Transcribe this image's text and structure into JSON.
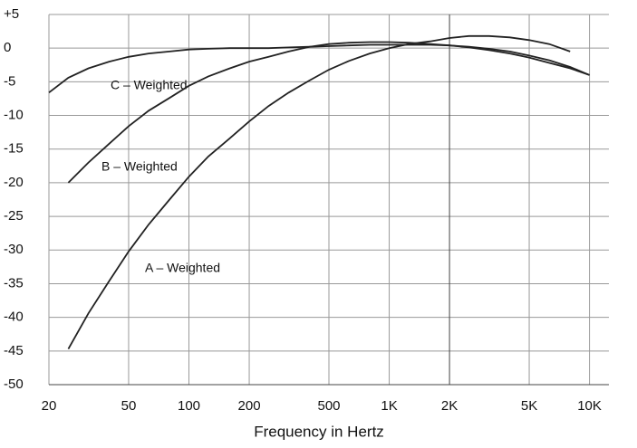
{
  "chart_data": {
    "type": "line",
    "x_label": "Frequency in Hertz",
    "log_x": true,
    "x": [
      20,
      25,
      31.5,
      40,
      50,
      63,
      80,
      100,
      125,
      160,
      200,
      250,
      315,
      400,
      500,
      630,
      800,
      1000,
      1250,
      1600,
      2000,
      2500,
      3150,
      4000,
      5000,
      6300,
      8000,
      10000
    ],
    "series": [
      {
        "name": "C – Weighted",
        "color": "#222222",
        "values": [
          -6.6,
          -4.4,
          -3.0,
          -2.0,
          -1.3,
          -0.8,
          -0.5,
          -0.2,
          -0.1,
          0,
          0,
          0,
          0.1,
          0.2,
          0.3,
          0.4,
          0.5,
          0.5,
          0.5,
          0.5,
          0.4,
          0.2,
          -0.1,
          -0.5,
          -1.1,
          -1.8,
          -2.8,
          -4
        ]
      },
      {
        "name": "B – Weighted",
        "color": "#222222",
        "values": [
          null,
          -20,
          -17,
          -14.2,
          -11.6,
          -9.3,
          -7.4,
          -5.6,
          -4.2,
          -3.0,
          -2.0,
          -1.3,
          -0.5,
          0.2,
          0.6,
          0.8,
          0.9,
          0.9,
          0.8,
          0.6,
          0.4,
          0.1,
          -0.3,
          -0.8,
          -1.4,
          -2.2,
          -3.0,
          -4
        ]
      },
      {
        "name": "A – Weighted",
        "color": "#222222",
        "values": [
          null,
          -44.7,
          -39.4,
          -34.6,
          -30.2,
          -26.2,
          -22.5,
          -19.1,
          -16.1,
          -13.4,
          -10.9,
          -8.6,
          -6.6,
          -4.8,
          -3.2,
          -1.9,
          -0.8,
          0,
          0.6,
          1.0,
          1.5,
          1.8,
          1.8,
          1.6,
          1.2,
          0.6,
          -0.5,
          null
        ]
      }
    ],
    "xlim": [
      20,
      12500
    ],
    "ylim": [
      -50,
      5
    ],
    "xticks": [
      20,
      50,
      100,
      200,
      500,
      {
        "value": 1000,
        "label": "1K"
      },
      {
        "value": 2000,
        "label": "2K"
      },
      {
        "value": 5000,
        "label": "5K"
      },
      {
        "value": 10000,
        "label": "10K"
      }
    ],
    "yticks": [
      {
        "value": 5,
        "label": "+5"
      },
      0,
      -5,
      -10,
      -15,
      -20,
      -25,
      -30,
      -35,
      -40,
      -45,
      -50
    ],
    "grid": true
  }
}
